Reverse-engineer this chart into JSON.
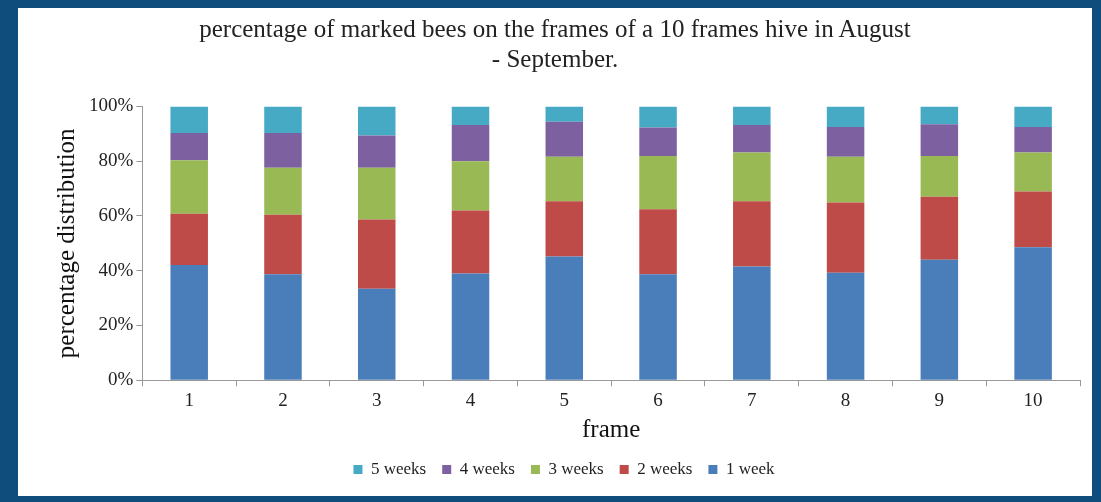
{
  "chart_data": {
    "type": "bar",
    "stacked": true,
    "title": "percentage of marked bees on the frames of a 10 frames hive in August - September.",
    "xlabel": "frame",
    "ylabel": "percentage distribution",
    "categories": [
      "1",
      "2",
      "3",
      "4",
      "5",
      "6",
      "7",
      "8",
      "9",
      "10"
    ],
    "series": [
      {
        "name": "1 week",
        "color": "#4a7ebb",
        "values": [
          42.1,
          38.7,
          33.4,
          39,
          45.2,
          38.7,
          41.5,
          39.2,
          44,
          48.6
        ]
      },
      {
        "name": "2 weeks",
        "color": "#be4b48",
        "values": [
          18.7,
          21.7,
          25.3,
          23,
          20.2,
          23.7,
          23.9,
          25.7,
          23,
          20.3
        ]
      },
      {
        "name": "3 weeks",
        "color": "#98b954",
        "values": [
          19.5,
          17.2,
          18.9,
          18,
          16.2,
          19.5,
          17.8,
          16.7,
          14.9,
          14.3
        ]
      },
      {
        "name": "4 weeks",
        "color": "#7d60a0",
        "values": [
          10,
          12.7,
          11.8,
          13.2,
          12.8,
          10.4,
          10,
          10.9,
          11.6,
          9.3
        ]
      },
      {
        "name": "5 weeks",
        "color": "#46aac5",
        "values": [
          9.7,
          9.7,
          10.6,
          6.8,
          5.6,
          7.7,
          6.8,
          7.5,
          6.5,
          7.5
        ]
      }
    ],
    "ylim": [
      0,
      100
    ],
    "yticks": [
      {
        "value": 0,
        "label": "0%"
      },
      {
        "value": 20,
        "label": "20%"
      },
      {
        "value": 40,
        "label": "40%"
      },
      {
        "value": 60,
        "label": "60%"
      },
      {
        "value": 80,
        "label": "80%"
      },
      {
        "value": 100,
        "label": "100%"
      }
    ],
    "grid": false,
    "legend": "bottom"
  }
}
